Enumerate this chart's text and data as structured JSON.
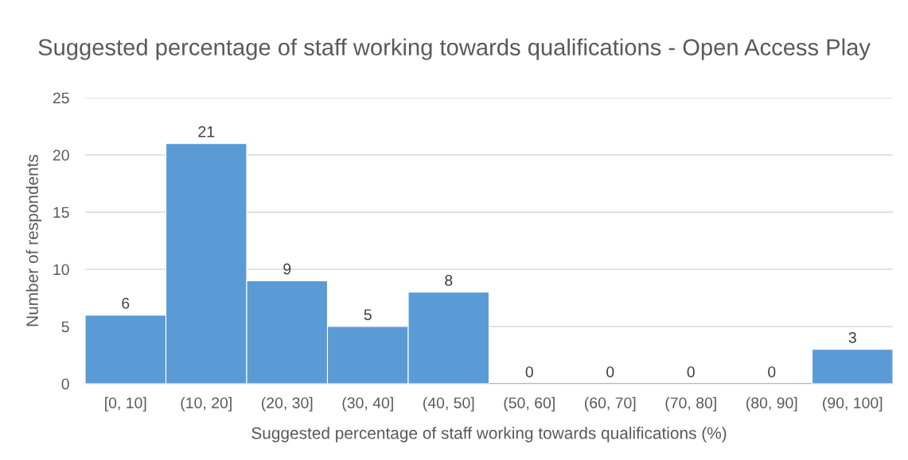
{
  "chart_data": {
    "type": "bar",
    "title": "Suggested percentage of staff working towards qualifications - Open Access Play",
    "xlabel": "Suggested percentage of staff working towards qualifications (%)",
    "ylabel": "Number of respondents",
    "categories": [
      "[0, 10]",
      "(10, 20]",
      "(20, 30]",
      "(30, 40]",
      "(40, 50]",
      "(50, 60]",
      "(60, 70]",
      "(70, 80]",
      "(80, 90]",
      "(90, 100]"
    ],
    "values": [
      6,
      21,
      9,
      5,
      8,
      0,
      0,
      0,
      0,
      3
    ],
    "color": "#5b9bd5",
    "ylim": [
      0,
      25
    ],
    "yticks": [
      0,
      5,
      10,
      15,
      20,
      25
    ],
    "grid": "y",
    "data_labels": true
  }
}
